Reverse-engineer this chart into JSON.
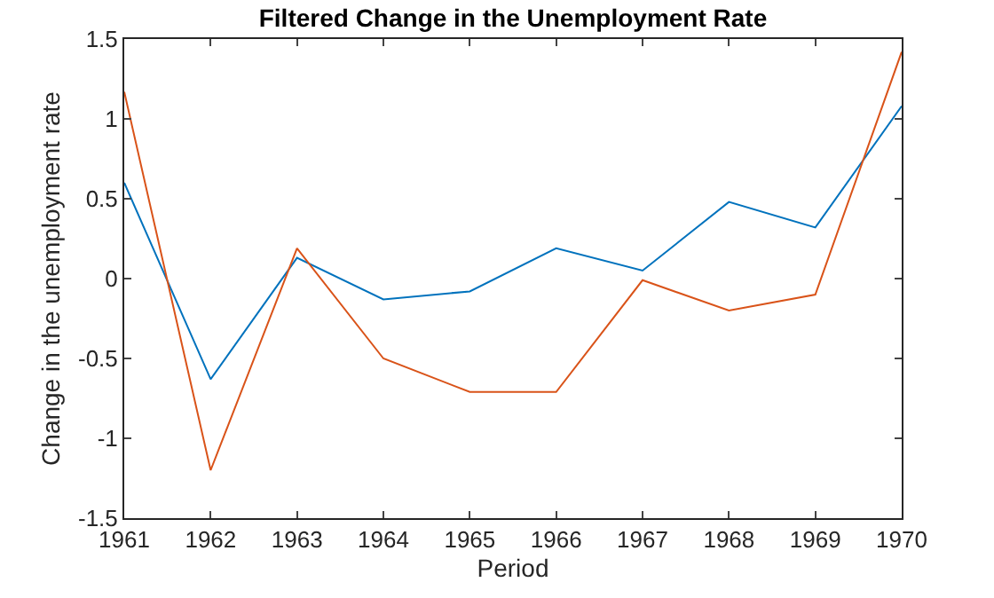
{
  "chart_data": {
    "type": "line",
    "title": "Filtered Change in the Unemployment Rate",
    "xlabel": "Period",
    "ylabel": "Change in the unemployment rate",
    "x": [
      1961,
      1962,
      1963,
      1964,
      1965,
      1966,
      1967,
      1968,
      1969,
      1970
    ],
    "series": [
      {
        "color": "#0072bd",
        "values": [
          0.6,
          -0.63,
          0.13,
          -0.13,
          -0.08,
          0.19,
          0.05,
          0.48,
          0.32,
          1.08
        ]
      },
      {
        "color": "#d95319",
        "values": [
          1.17,
          -1.2,
          0.19,
          -0.5,
          -0.71,
          -0.71,
          -0.01,
          -0.2,
          -0.1,
          1.42
        ]
      }
    ],
    "xlim": [
      1961,
      1970
    ],
    "xticks": [
      1961,
      1962,
      1963,
      1964,
      1965,
      1966,
      1967,
      1968,
      1969,
      1970
    ],
    "ylim": [
      -1.5,
      1.5
    ],
    "yticks": [
      -1.5,
      -1,
      -0.5,
      0,
      0.5,
      1,
      1.5
    ]
  }
}
